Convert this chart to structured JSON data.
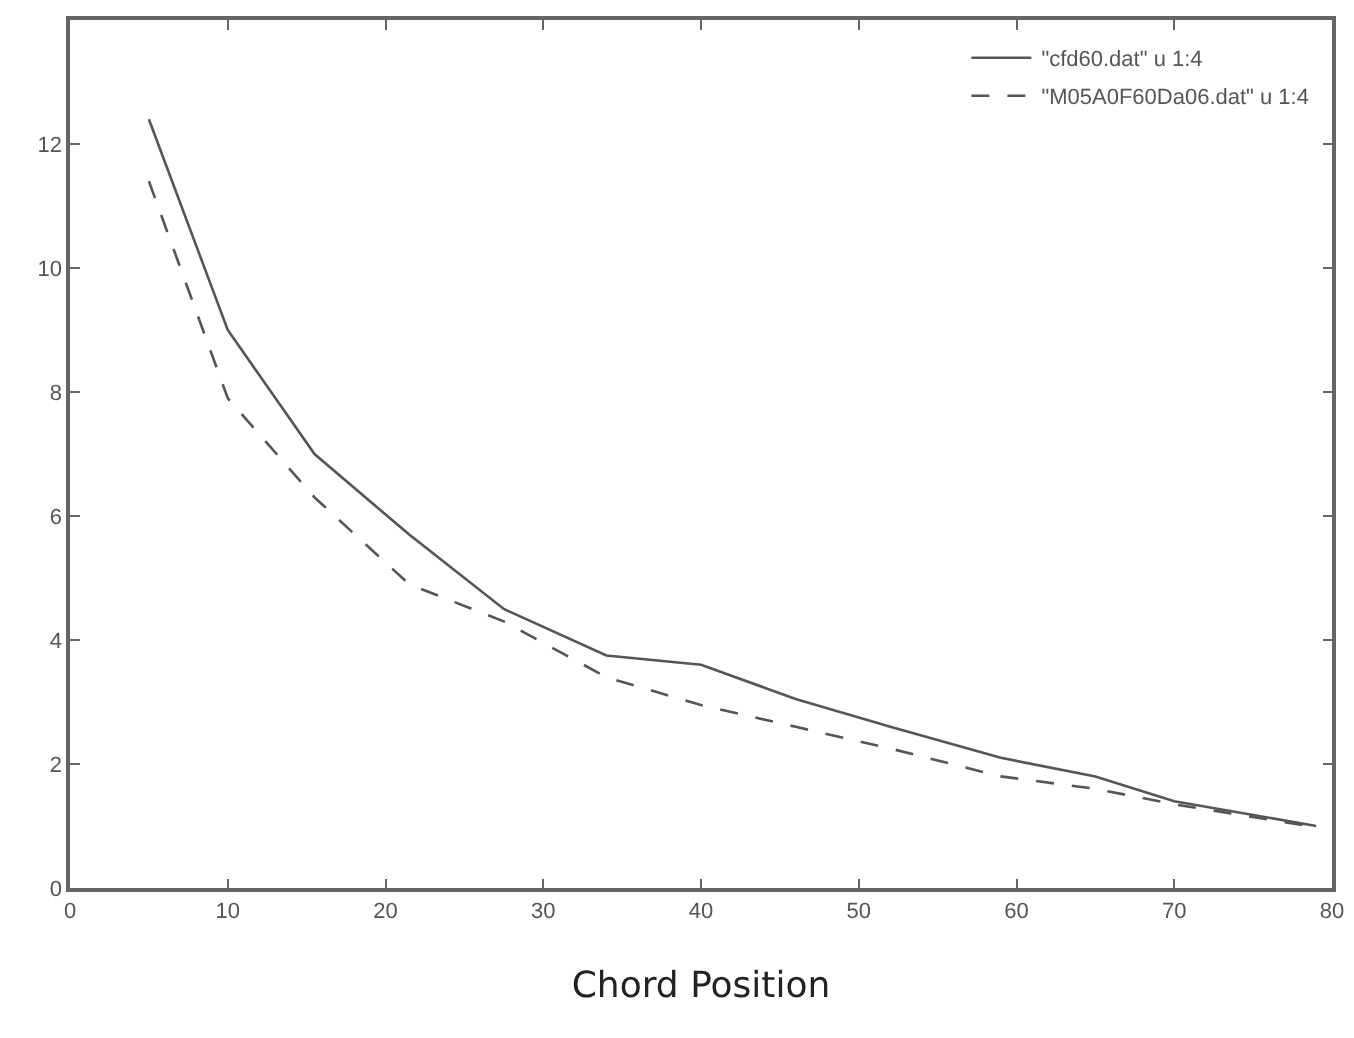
{
  "chart_data": {
    "type": "line",
    "xlabel": "Chord Position",
    "xlim": [
      0,
      80
    ],
    "xticks": [
      0,
      10,
      20,
      30,
      40,
      50,
      60,
      70,
      80
    ],
    "ylim": [
      0,
      14
    ],
    "yticks": [
      0,
      2,
      4,
      6,
      8,
      10,
      12
    ],
    "grid": false,
    "legend": "top right",
    "marker": "none",
    "series": [
      {
        "name": "\"cfd60.dat\" u 1:4",
        "color": "#555555",
        "line_style": "solid",
        "x": [
          5,
          10,
          15.5,
          21.5,
          27.5,
          34,
          40,
          46,
          52,
          59,
          65,
          70,
          79
        ],
        "values": [
          12.4,
          9,
          7,
          5.7,
          4.5,
          3.75,
          3.6,
          3.05,
          2.6,
          2.1,
          1.8,
          1.4,
          1.0
        ]
      },
      {
        "name": "\"M05A0F60Da06.dat\" u 1:4",
        "color": "#555555",
        "line_style": "dashed",
        "x": [
          5,
          10,
          15.5,
          21.5,
          27.5,
          34,
          40,
          46,
          52,
          59,
          65,
          70,
          79
        ],
        "values": [
          11.4,
          7.9,
          6.3,
          4.9,
          4.3,
          3.4,
          2.95,
          2.6,
          2.25,
          1.8,
          1.6,
          1.35,
          0.98
        ]
      }
    ]
  }
}
